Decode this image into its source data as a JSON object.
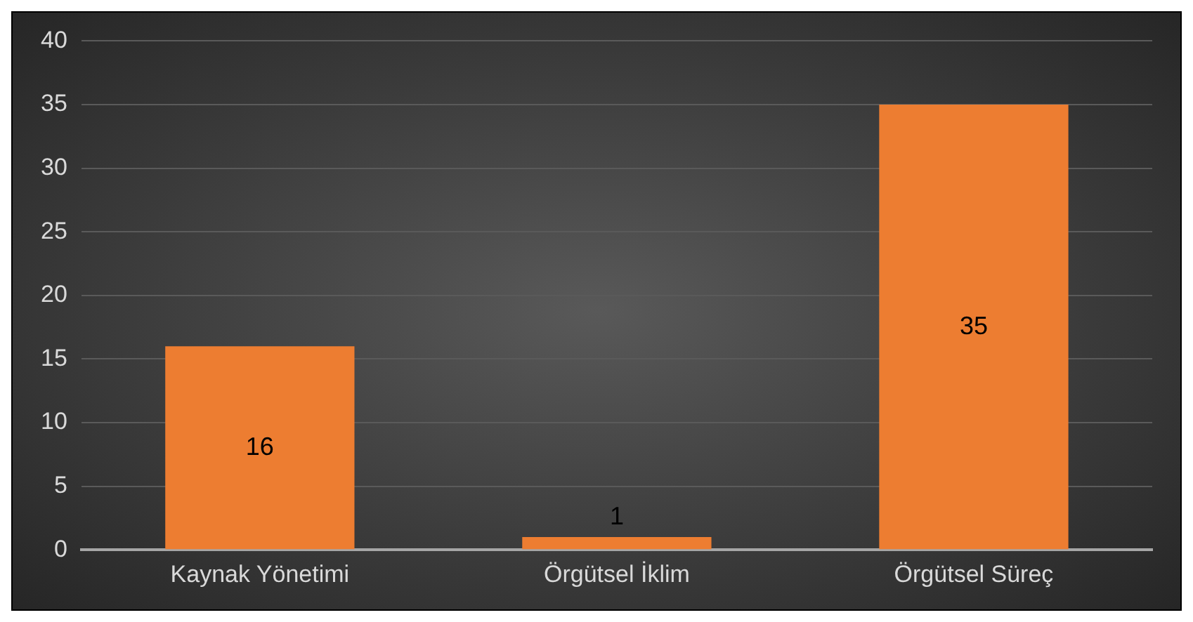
{
  "chart_data": {
    "type": "bar",
    "categories": [
      "Kaynak Yönetimi",
      "Örgütsel İklim",
      "Örgütsel Süreç"
    ],
    "values": [
      16,
      1,
      35
    ],
    "color": "#ed7d31",
    "ylim": [
      0,
      40
    ],
    "yticks": [
      0,
      5,
      10,
      15,
      20,
      25,
      30,
      35,
      40
    ],
    "grid": "y",
    "data_labels": true,
    "legend": false
  }
}
